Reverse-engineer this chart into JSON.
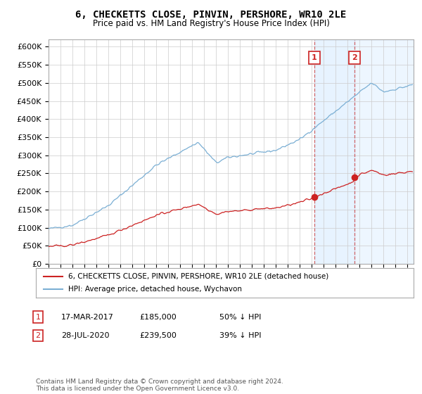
{
  "title": "6, CHECKETTS CLOSE, PINVIN, PERSHORE, WR10 2LE",
  "subtitle": "Price paid vs. HM Land Registry's House Price Index (HPI)",
  "ylim": [
    0,
    620000
  ],
  "yticks": [
    0,
    50000,
    100000,
    150000,
    200000,
    250000,
    300000,
    350000,
    400000,
    450000,
    500000,
    550000,
    600000
  ],
  "xlim_start": 1995.0,
  "xlim_end": 2025.5,
  "hpi_color": "#7bafd4",
  "price_color": "#cc2222",
  "shaded_color": "#ddeeff",
  "shaded_region_1_start": 2017.21,
  "shaded_region_1_end": 2020.57,
  "shaded_region_2_start": 2020.57,
  "shaded_region_2_end": 2025.5,
  "sale1_x": 2017.21,
  "sale1_y": 185000,
  "sale1_label": "1",
  "sale2_x": 2020.57,
  "sale2_y": 239500,
  "sale2_label": "2",
  "legend_line1": "6, CHECKETTS CLOSE, PINVIN, PERSHORE, WR10 2LE (detached house)",
  "legend_line2": "HPI: Average price, detached house, Wychavon",
  "annotation1_date": "17-MAR-2017",
  "annotation1_price": "£185,000",
  "annotation1_pct": "50% ↓ HPI",
  "annotation2_date": "28-JUL-2020",
  "annotation2_price": "£239,500",
  "annotation2_pct": "39% ↓ HPI",
  "footer": "Contains HM Land Registry data © Crown copyright and database right 2024.\nThis data is licensed under the Open Government Licence v3.0.",
  "background_color": "#ffffff",
  "grid_color": "#cccccc"
}
